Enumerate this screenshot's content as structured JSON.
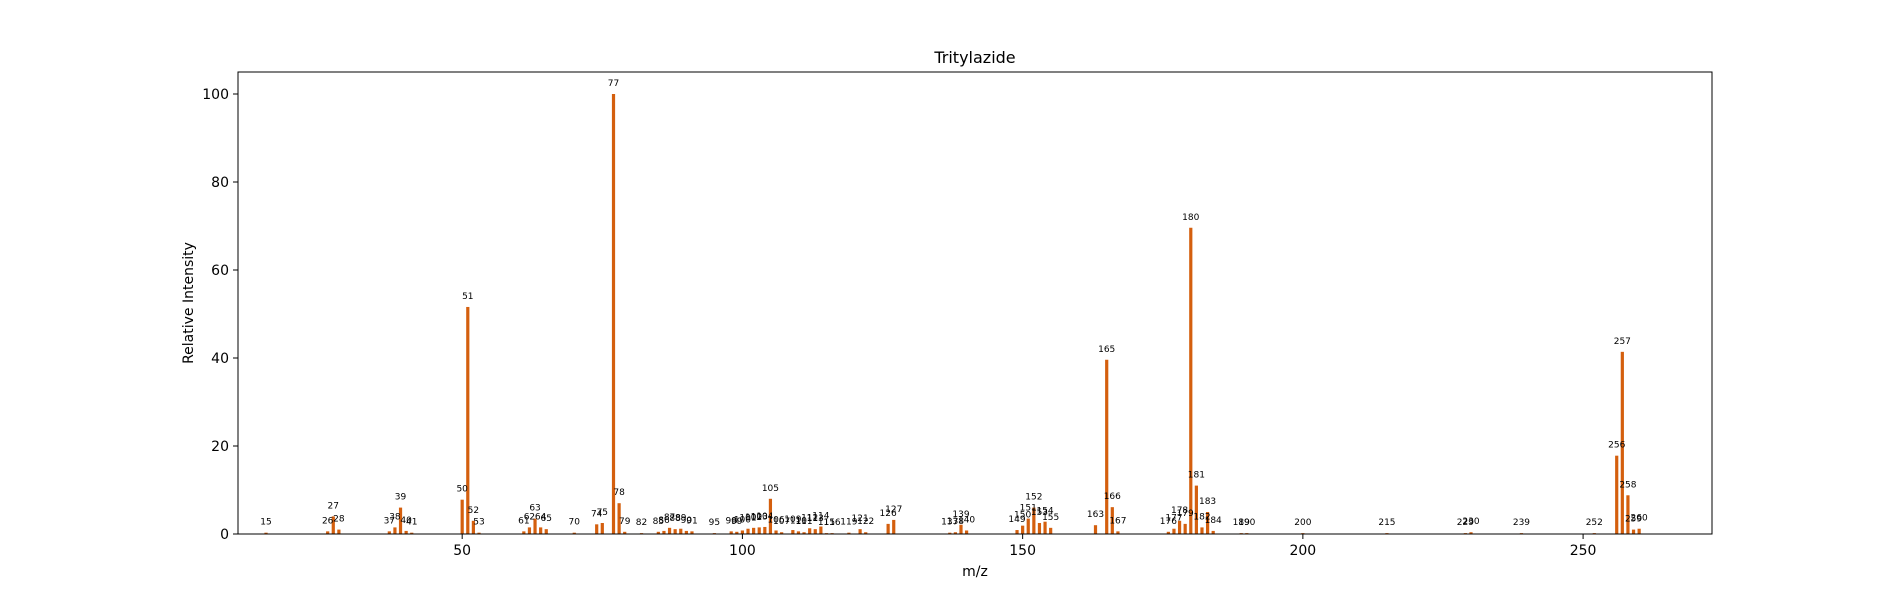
{
  "chart_data": {
    "type": "bar",
    "title": "Tritylazide",
    "xlabel": "m/z",
    "ylabel": "Relative Intensity",
    "xlim": [
      10,
      273
    ],
    "ylim": [
      0,
      105
    ],
    "xticks": [
      50,
      100,
      150,
      200,
      250
    ],
    "yticks": [
      0,
      20,
      40,
      60,
      80,
      100
    ],
    "grid": false,
    "bar_color": "#d45f0e",
    "series": [
      {
        "x": [
          15,
          26,
          27,
          28,
          37,
          38,
          39,
          40,
          41,
          50,
          51,
          52,
          53,
          61,
          62,
          63,
          64,
          65,
          70,
          74,
          75,
          77,
          78,
          79,
          82,
          85,
          86,
          87,
          88,
          89,
          90,
          91,
          95,
          98,
          99,
          100,
          101,
          102,
          103,
          104,
          105,
          106,
          107,
          109,
          110,
          111,
          112,
          113,
          114,
          115,
          116,
          119,
          121,
          122,
          126,
          127,
          137,
          138,
          139,
          140,
          149,
          150,
          151,
          152,
          153,
          154,
          155,
          163,
          165,
          166,
          167,
          176,
          177,
          178,
          179,
          180,
          181,
          182,
          183,
          184,
          189,
          190,
          200,
          215,
          229,
          230,
          239,
          252,
          256,
          257,
          258,
          259,
          260
        ],
        "y": [
          0.3,
          0.6,
          4.0,
          1.0,
          0.6,
          1.5,
          6.0,
          0.7,
          0.3,
          7.8,
          51.6,
          3.0,
          0.3,
          0.6,
          1.5,
          3.5,
          1.5,
          1.1,
          0.3,
          2.2,
          2.5,
          100,
          7.0,
          0.5,
          0.2,
          0.5,
          0.7,
          1.4,
          1.1,
          1.2,
          0.7,
          0.6,
          0.2,
          0.6,
          0.5,
          0.8,
          1.2,
          1.4,
          1.5,
          1.6,
          8.0,
          0.8,
          0.4,
          0.9,
          0.6,
          0.4,
          1.3,
          1.1,
          1.7,
          0.2,
          0.2,
          0.3,
          1.1,
          0.4,
          2.3,
          3.2,
          0.3,
          0.4,
          2.1,
          0.8,
          0.9,
          1.9,
          3.5,
          6.0,
          2.5,
          2.8,
          1.4,
          2.0,
          39.6,
          6.1,
          0.6,
          0.5,
          1.2,
          3.0,
          2.3,
          69.6,
          11.0,
          1.5,
          5.0,
          0.7,
          0.2,
          0.2,
          0.2,
          0.2,
          0.2,
          0.4,
          0.2,
          0.2,
          17.8,
          41.4,
          8.8,
          1.0,
          1.2
        ]
      }
    ]
  }
}
